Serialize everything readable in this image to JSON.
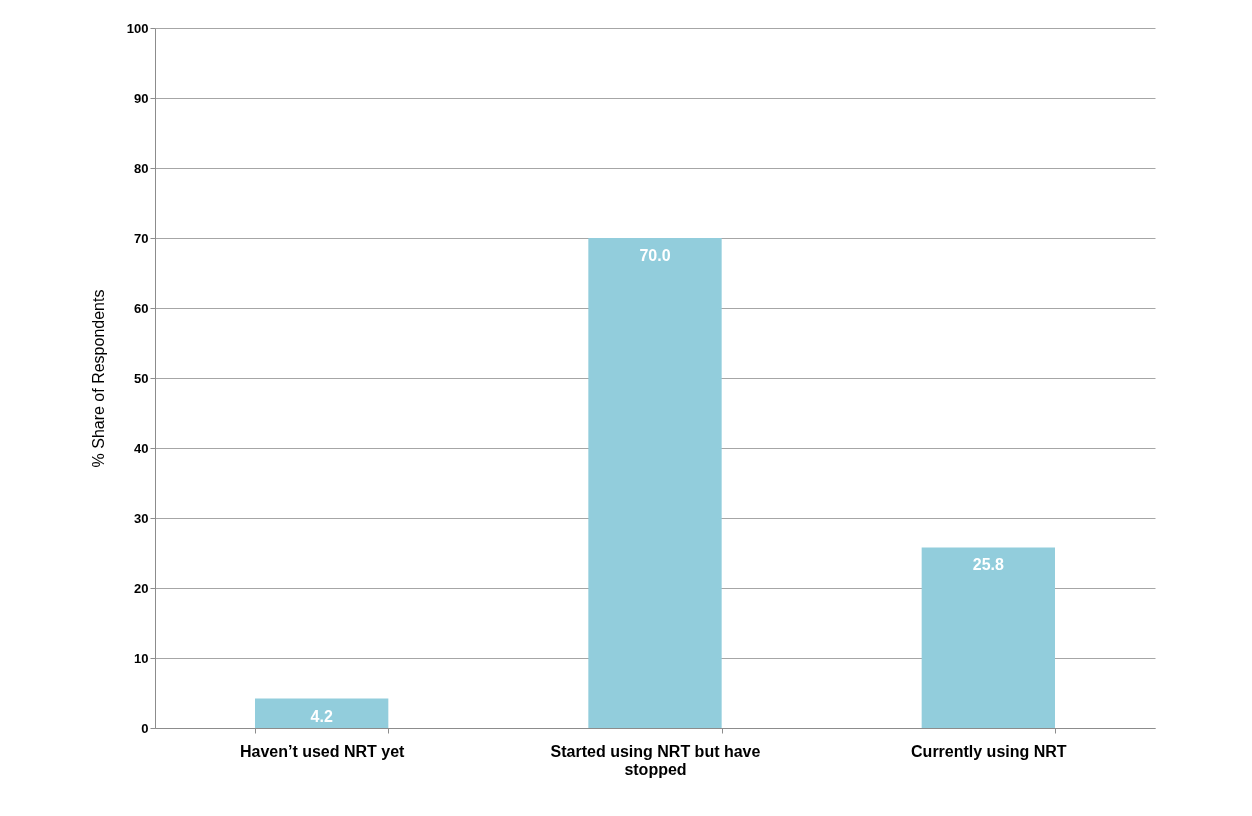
{
  "chart_data": {
    "type": "bar",
    "ylabel": "% Share of Respondents",
    "categories": [
      "Haven’t used NRT yet",
      "Started using NRT but have stopped",
      "Currently using NRT"
    ],
    "values": [
      4.2,
      70.0,
      25.8
    ],
    "value_labels": [
      "4.2",
      "70.0",
      "25.8"
    ],
    "color": "#92cddc",
    "ylim": [
      0,
      100
    ],
    "yticks": [
      0,
      10,
      20,
      30,
      40,
      50,
      60,
      70,
      80,
      90,
      100
    ],
    "grid": "y"
  }
}
